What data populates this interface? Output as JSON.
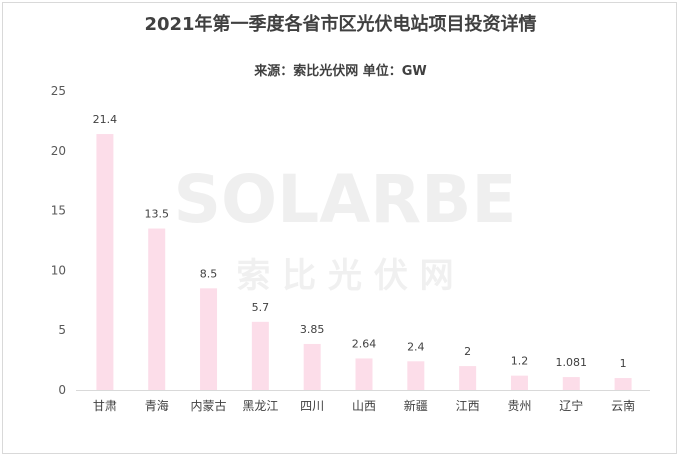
{
  "header": {
    "title": "2021年第一季度各省市区光伏电站项目投资详情",
    "subtitle": "来源：索比光伏网 单位：GW"
  },
  "watermark": {
    "logo_text": "SOLARBE",
    "logo_subtext": "索 比 光 伏 网"
  },
  "colors": {
    "bar": "#fcdde9",
    "axis": "#d9d9d9"
  },
  "chart_data": {
    "type": "bar",
    "title": "2021年第一季度各省市区光伏电站项目投资详情",
    "subtitle": "来源：索比光伏网 单位：GW",
    "categories": [
      "甘肃",
      "青海",
      "内蒙古",
      "黑龙江",
      "四川",
      "山西",
      "新疆",
      "江西",
      "贵州",
      "辽宁",
      "云南"
    ],
    "values": [
      21.4,
      13.5,
      8.5,
      5.7,
      3.85,
      2.64,
      2.4,
      2,
      1.2,
      1.081,
      1
    ],
    "value_labels": [
      "21.4",
      "13.5",
      "8.5",
      "5.7",
      "3.85",
      "2.64",
      "2.4",
      "2",
      "1.2",
      "1.081",
      "1"
    ],
    "ylim": [
      0,
      25
    ],
    "yticks": [
      "0",
      "5",
      "10",
      "15",
      "20",
      "25"
    ],
    "ytick_values": [
      0,
      5,
      10,
      15,
      20,
      25
    ],
    "grid": false,
    "legend": "none"
  }
}
